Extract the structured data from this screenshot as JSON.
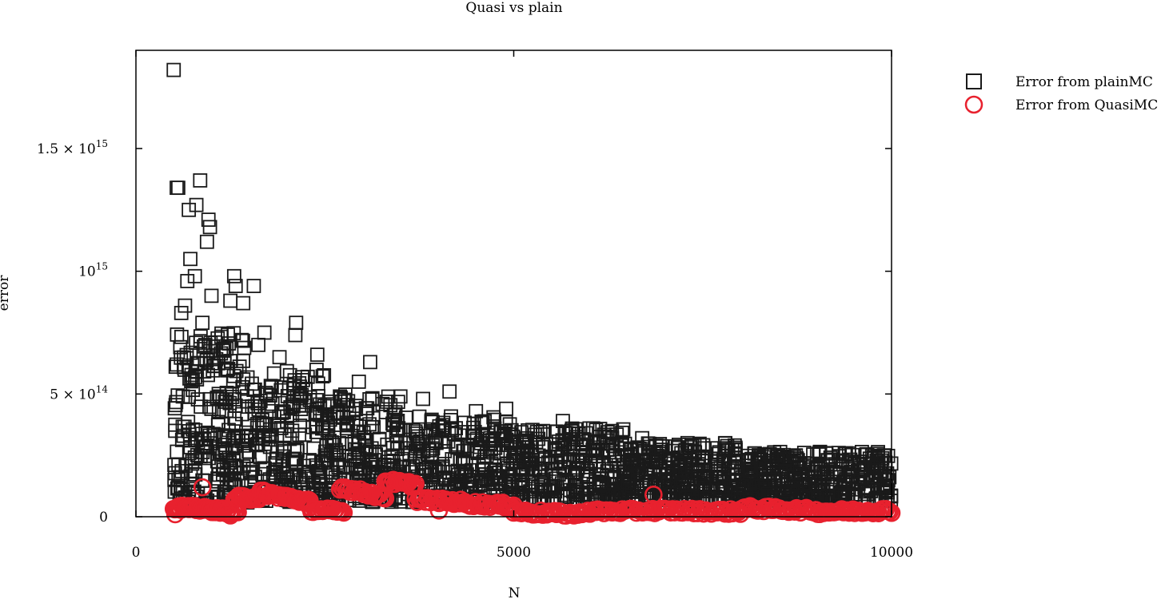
{
  "chart_data": {
    "type": "scatter",
    "title": "Quasi vs plain",
    "xlabel": "N",
    "ylabel": "error",
    "xlim": [
      0,
      10000
    ],
    "ylim": [
      0,
      1900000000000000.0
    ],
    "x_ticks": [
      {
        "value": 0,
        "label": "0"
      },
      {
        "value": 5000,
        "label": "5000"
      },
      {
        "value": 10000,
        "label": "10000"
      }
    ],
    "y_ticks": [
      {
        "value": 0,
        "label": "0",
        "mantissa": "",
        "exponent": ""
      },
      {
        "value": 500000000000000.0,
        "label": "5 × 10^14",
        "mantissa": "5 × 10",
        "exponent": "14"
      },
      {
        "value": 1000000000000000.0,
        "label": "10^15",
        "mantissa": "10",
        "exponent": "15"
      },
      {
        "value": 1500000000000000.0,
        "label": "1.5 × 10^15",
        "mantissa": "1.5 × 10",
        "exponent": "15"
      }
    ],
    "grid": false,
    "legend_position": "outside-top-right",
    "series": [
      {
        "name": "Error from plainMC",
        "marker": "square",
        "color": "#1a1a1a",
        "points": [
          [
            500,
            1820000000000000.0
          ],
          [
            540,
            1340000000000000.0
          ],
          [
            560,
            1340000000000000.0
          ],
          [
            850,
            1370000000000000.0
          ],
          [
            800,
            1270000000000000.0
          ],
          [
            700,
            1250000000000000.0
          ],
          [
            960,
            1210000000000000.0
          ],
          [
            980,
            1180000000000000.0
          ],
          [
            940,
            1120000000000000.0
          ],
          [
            720,
            1050000000000000.0
          ],
          [
            780,
            980000000000000.0
          ],
          [
            680,
            960000000000000.0
          ],
          [
            1300,
            980000000000000.0
          ],
          [
            1320,
            940000000000000.0
          ],
          [
            1560,
            940000000000000.0
          ],
          [
            1000,
            900000000000000.0
          ],
          [
            1250,
            880000000000000.0
          ],
          [
            1420,
            870000000000000.0
          ],
          [
            650,
            860000000000000.0
          ],
          [
            600,
            830000000000000.0
          ],
          [
            880,
            790000000000000.0
          ],
          [
            1050,
            710000000000000.0
          ],
          [
            2120,
            790000000000000.0
          ],
          [
            2110,
            740000000000000.0
          ],
          [
            1700,
            750000000000000.0
          ],
          [
            1620,
            700000000000000.0
          ],
          [
            2400,
            660000000000000.0
          ],
          [
            3100,
            630000000000000.0
          ],
          [
            1900,
            650000000000000.0
          ],
          [
            540,
            620000000000000.0
          ],
          [
            2950,
            550000000000000.0
          ],
          [
            4150,
            510000000000000.0
          ],
          [
            4900,
            440000000000000.0
          ],
          [
            3500,
            490000000000000.0
          ],
          [
            3800,
            480000000000000.0
          ],
          [
            5650,
            390000000000000.0
          ],
          [
            6050,
            360000000000000.0
          ],
          [
            6700,
            320000000000000.0
          ],
          [
            7300,
            300000000000000.0
          ],
          [
            7800,
            300000000000000.0
          ],
          [
            4500,
            430000000000000.0
          ],
          [
            2700,
            490000000000000.0
          ],
          [
            1150,
            680000000000000.0
          ],
          [
            1400,
            720000000000000.0
          ],
          [
            620,
            490000000000000.0
          ],
          [
            520,
            350000000000000.0
          ],
          [
            510,
            150000000000000.0
          ],
          [
            560,
            120000000000000.0
          ],
          [
            9900,
            250000000000000.0
          ],
          [
            9300,
            260000000000000.0
          ]
        ],
        "cloud": [
          {
            "x_from": 500,
            "x_to": 1500,
            "y_low": 50000000000000.0,
            "y_high": 750000000000000.0,
            "count": 240
          },
          {
            "x_from": 1500,
            "x_to": 2500,
            "y_low": 60000000000000.0,
            "y_high": 600000000000000.0,
            "count": 220
          },
          {
            "x_from": 2500,
            "x_to": 3500,
            "y_low": 60000000000000.0,
            "y_high": 500000000000000.0,
            "count": 220
          },
          {
            "x_from": 3500,
            "x_to": 5000,
            "y_low": 60000000000000.0,
            "y_high": 410000000000000.0,
            "count": 280
          },
          {
            "x_from": 5000,
            "x_to": 6500,
            "y_low": 60000000000000.0,
            "y_high": 360000000000000.0,
            "count": 300
          },
          {
            "x_from": 6500,
            "x_to": 8000,
            "y_low": 60000000000000.0,
            "y_high": 300000000000000.0,
            "count": 300
          },
          {
            "x_from": 8000,
            "x_to": 10000,
            "y_low": 60000000000000.0,
            "y_high": 265000000000000.0,
            "count": 380
          }
        ]
      },
      {
        "name": "Error from QuasiMC",
        "marker": "circle",
        "color": "#e8212e",
        "points": [
          [
            880,
            120000000000000.0
          ],
          [
            4010,
            25000000000000.0
          ],
          [
            520,
            10000000000000.0
          ],
          [
            6850,
            90000000000000.0
          ],
          [
            1250,
            5000000000000.0
          ]
        ],
        "segments": [
          {
            "x_from": 500,
            "x_to": 1350,
            "y_from": 40000000000000.0,
            "y_to": 20000000000000.0,
            "count": 55
          },
          {
            "x_from": 1300,
            "x_to": 1650,
            "y_from": 75000000000000.0,
            "y_to": 80000000000000.0,
            "count": 18
          },
          {
            "x_from": 1650,
            "x_to": 2300,
            "y_from": 100000000000000.0,
            "y_to": 60000000000000.0,
            "count": 35
          },
          {
            "x_from": 2300,
            "x_to": 2750,
            "y_from": 30000000000000.0,
            "y_to": 20000000000000.0,
            "count": 22
          },
          {
            "x_from": 2700,
            "x_to": 3300,
            "y_from": 120000000000000.0,
            "y_to": 80000000000000.0,
            "count": 28
          },
          {
            "x_from": 3300,
            "x_to": 3700,
            "y_from": 145000000000000.0,
            "y_to": 130000000000000.0,
            "count": 20
          },
          {
            "x_from": 3700,
            "x_to": 4300,
            "y_from": 70000000000000.0,
            "y_to": 60000000000000.0,
            "count": 28
          },
          {
            "x_from": 4300,
            "x_to": 5000,
            "y_from": 55000000000000.0,
            "y_to": 45000000000000.0,
            "count": 30
          },
          {
            "x_from": 5000,
            "x_to": 5900,
            "y_from": 20000000000000.0,
            "y_to": 10000000000000.0,
            "count": 36
          },
          {
            "x_from": 5900,
            "x_to": 7000,
            "y_from": 20000000000000.0,
            "y_to": 25000000000000.0,
            "count": 42
          },
          {
            "x_from": 7000,
            "x_to": 8000,
            "y_from": 25000000000000.0,
            "y_to": 20000000000000.0,
            "count": 40
          },
          {
            "x_from": 8000,
            "x_to": 9000,
            "y_from": 35000000000000.0,
            "y_to": 25000000000000.0,
            "count": 40
          },
          {
            "x_from": 9000,
            "x_to": 10000,
            "y_from": 20000000000000.0,
            "y_to": 25000000000000.0,
            "count": 42
          }
        ]
      }
    ]
  }
}
